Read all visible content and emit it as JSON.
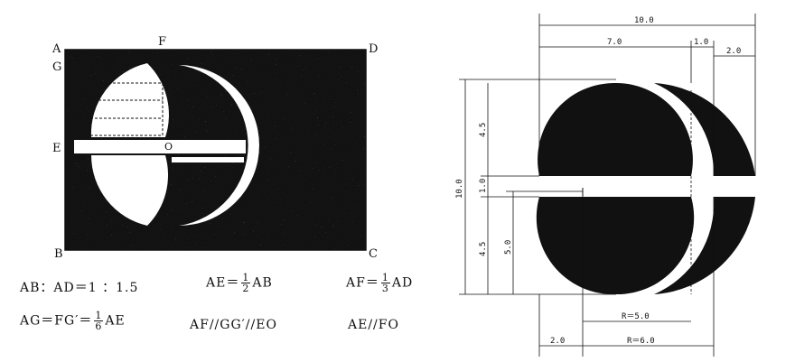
{
  "left_diagram": {
    "point_labels": {
      "A": "A",
      "F": "F",
      "D": "D",
      "G": "G",
      "E": "E",
      "O": "O",
      "B": "B",
      "C": "C"
    }
  },
  "formulas": {
    "row1": {
      "ratio": "AB：AD＝1 ：1.5",
      "ae_prefix": "AE＝",
      "ae_num": "1",
      "ae_den": "2",
      "ae_suffix": "AB",
      "af_prefix": "AF＝",
      "af_num": "1",
      "af_den": "3",
      "af_suffix": "AD"
    },
    "row2": {
      "ag_prefix": "AG＝FG′＝",
      "ag_num": "1",
      "ag_den": "6",
      "ag_suffix": "AE",
      "parallel1": "AF//GG′//EO",
      "parallel2": "AE//FO"
    }
  },
  "dimensions": {
    "top_total": "10.0",
    "top_left": "7.0",
    "top_mid": "1.0",
    "top_right": "2.0",
    "left_total": "10.0",
    "left_upper": "4.5",
    "left_gap": "1.0",
    "left_lower": "4.5",
    "left_inner": "5.0",
    "radius_inner": "R＝5.0",
    "radius_outer": "R＝6.0",
    "bottom_left": "2.0"
  },
  "colors": {
    "ink": "#111111",
    "paper": "#ffffff"
  }
}
